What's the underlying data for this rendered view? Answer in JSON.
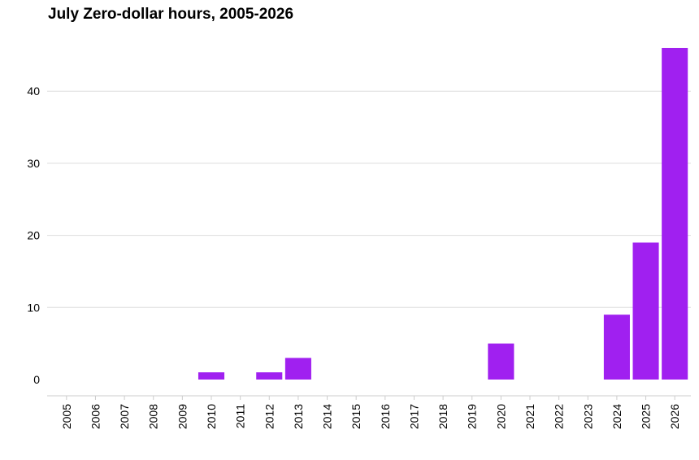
{
  "chart_data": {
    "type": "bar",
    "title": "July Zero-dollar hours, 2005-2026",
    "xlabel": "",
    "ylabel": "",
    "categories": [
      "2005",
      "2006",
      "2007",
      "2008",
      "2009",
      "2010",
      "2011",
      "2012",
      "2013",
      "2014",
      "2015",
      "2016",
      "2017",
      "2018",
      "2019",
      "2020",
      "2021",
      "2022",
      "2023",
      "2024",
      "2025",
      "2026"
    ],
    "values": [
      0,
      0,
      0,
      0,
      0,
      1,
      0,
      1,
      3,
      0,
      0,
      0,
      0,
      0,
      0,
      5,
      0,
      0,
      0,
      9,
      19,
      46
    ],
    "ylim": [
      0,
      48
    ],
    "yticks": [
      0,
      10,
      20,
      30,
      40
    ],
    "ytick_labels": [
      "0",
      "10",
      "20",
      "30",
      "40"
    ],
    "bar_color": "#a020f0",
    "grid": true,
    "legend": "none"
  }
}
